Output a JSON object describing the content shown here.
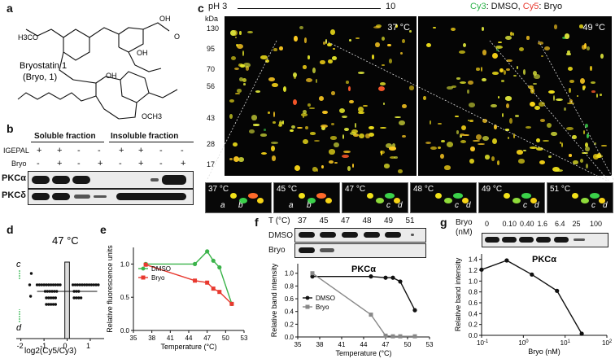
{
  "panels": {
    "a": "a",
    "b": "b",
    "c": "c",
    "d": "d",
    "e": "e",
    "f": "f",
    "g": "g"
  },
  "panel_a": {
    "name_line1": "Bryostatin 1",
    "name_line2": "(Bryo, 1)",
    "groups": [
      "H3CO",
      "OH",
      "OH",
      "O",
      "OH",
      "OCH3"
    ]
  },
  "panel_b": {
    "soluble": "Soluble fraction",
    "insoluble": "Insoluble fraction",
    "row_igepal": "IGEPAL",
    "row_bryo": "Bryo",
    "igepal_signs": [
      "+",
      "+",
      "-",
      "-",
      "+",
      "+",
      "-",
      "-"
    ],
    "bryo_signs": [
      "-",
      "+",
      "-",
      "+",
      "-",
      "+",
      "-",
      "+"
    ],
    "blot1": "PKCα",
    "blot2": "PKCδ"
  },
  "panel_c": {
    "ph_start": "pH 3",
    "ph_end": "10",
    "legend_cy3": "Cy3",
    "legend_sep1": ": DMSO, ",
    "legend_cy5": "Cy5",
    "legend_sep2": ": Bryo",
    "kda": "kDa",
    "mw": [
      "130",
      "95",
      "70",
      "56",
      "43",
      "28",
      "17"
    ],
    "temp_left": "37 °C",
    "temp_right": "49 °C",
    "zooms": [
      "37 °C",
      "45 °C",
      "47 °C",
      "48 °C",
      "49 °C",
      "51 °C"
    ],
    "spot_letters": [
      "a",
      "b",
      "c",
      "d"
    ]
  },
  "panel_d": {
    "title": "47 °C",
    "xlabel": "log2(Cy5/Cy3)",
    "arrow_c": "c",
    "arrow_d": "d",
    "xticks": [
      "-2",
      "-1",
      "0",
      "1"
    ]
  },
  "panel_f": {
    "t_label": "T (°C)",
    "temps": [
      "37",
      "45",
      "47",
      "48",
      "49",
      "51"
    ],
    "row1": "DMSO",
    "row2": "Bryo",
    "title": "PKCα"
  },
  "panel_g": {
    "bryo_label": "Bryo",
    "unit_label": "(nM)",
    "concs": [
      "0",
      "0.10",
      "0.40",
      "1.6",
      "6.4",
      "25",
      "100"
    ],
    "title": "PKCα"
  },
  "chart_data": [
    {
      "id": "d",
      "type": "scatter",
      "title": "47 °C",
      "xlabel": "log2(Cy5/Cy3)",
      "ylabel": "",
      "xlim": [
        -2.2,
        1.6
      ],
      "xticks": [
        -2,
        -1,
        0,
        1
      ],
      "points_x": [
        -1.55,
        -1.62,
        -1.58,
        -1.3,
        -1.2,
        -1.1,
        -1.0,
        -0.9,
        -0.8,
        -0.7,
        -0.6,
        -0.5,
        -0.4,
        -0.3,
        -0.95,
        -0.85,
        -0.75,
        -0.65,
        -0.55,
        -0.45,
        -0.9,
        -0.8,
        -0.7,
        -0.6,
        -0.5,
        -0.9,
        -0.8,
        -0.7,
        -0.6,
        -0.5,
        0.25,
        0.35,
        0.45,
        0.55,
        0.65,
        0.75,
        0.85,
        0.95,
        1.05,
        1.15,
        1.25,
        1.35,
        0.3,
        0.4,
        0.5,
        0.3,
        0.4,
        0.5,
        0.6
      ],
      "points_row": [
        3,
        4,
        5,
        0,
        0,
        0,
        0,
        0,
        0,
        0,
        0,
        0,
        0,
        0,
        1,
        1,
        1,
        1,
        1,
        1,
        2,
        2,
        2,
        2,
        2,
        3,
        3,
        3,
        3,
        3,
        0,
        0,
        0,
        0,
        0,
        0,
        0,
        0,
        0,
        0,
        0,
        0,
        1,
        1,
        1,
        2,
        2,
        2,
        2
      ],
      "mean": 0,
      "box": [
        -0.1,
        0.1
      ]
    },
    {
      "id": "e",
      "type": "line",
      "xlabel": "Temperature (°C)",
      "ylabel": "Relative fluorescence units",
      "xlim": [
        35,
        53
      ],
      "ylim": [
        0,
        1.25
      ],
      "xticks": [
        35,
        38,
        41,
        44,
        47,
        50,
        53
      ],
      "yticks": [
        0.0,
        0.5,
        1.0
      ],
      "series": [
        {
          "name": "DMSO",
          "color": "#3bb34a",
          "x": [
            37,
            45,
            47,
            48,
            49,
            51
          ],
          "y": [
            1.0,
            1.0,
            1.19,
            1.05,
            0.95,
            0.4
          ]
        },
        {
          "name": "Bryo",
          "color": "#e8392f",
          "x": [
            37,
            45,
            47,
            48,
            49,
            51
          ],
          "y": [
            0.99,
            0.75,
            0.72,
            0.63,
            0.58,
            0.4
          ]
        }
      ]
    },
    {
      "id": "f",
      "type": "line",
      "title": "PKCα",
      "xlabel": "Temperature (°C)",
      "ylabel": "Relative band intensity",
      "xlim": [
        35,
        53
      ],
      "ylim": [
        0,
        1.15
      ],
      "xticks": [
        35,
        38,
        41,
        44,
        47,
        50,
        53
      ],
      "yticks": [
        0.0,
        0.2,
        0.4,
        0.6,
        0.8,
        1.0
      ],
      "series": [
        {
          "name": "DMSO",
          "color": "#111111",
          "x": [
            37,
            45,
            47,
            48,
            49,
            51
          ],
          "y": [
            0.95,
            0.95,
            0.93,
            0.93,
            0.87,
            0.42
          ]
        },
        {
          "name": "Bryo",
          "color": "#888888",
          "x": [
            37,
            45,
            47,
            48,
            49,
            51
          ],
          "y": [
            1.0,
            0.35,
            0.02,
            0.01,
            0.01,
            0.01
          ]
        }
      ]
    },
    {
      "id": "g",
      "type": "line",
      "title": "PKCα",
      "xlabel": "Bryo (nM)",
      "ylabel": "Relative band intensity",
      "xscale": "log",
      "xlim": [
        0.1,
        100
      ],
      "ylim": [
        0,
        1.5
      ],
      "xticks": [
        "10^-1",
        "10^0",
        "10^1",
        "10^2"
      ],
      "yticks": [
        0.0,
        0.2,
        0.4,
        0.6,
        0.8,
        1.0,
        1.2,
        1.4
      ],
      "series": [
        {
          "name": "Bryo",
          "color": "#111111",
          "x": [
            0.1,
            0.4,
            1.6,
            6.4,
            25
          ],
          "y": [
            1.21,
            1.38,
            1.12,
            0.82,
            0.03
          ]
        }
      ]
    }
  ]
}
